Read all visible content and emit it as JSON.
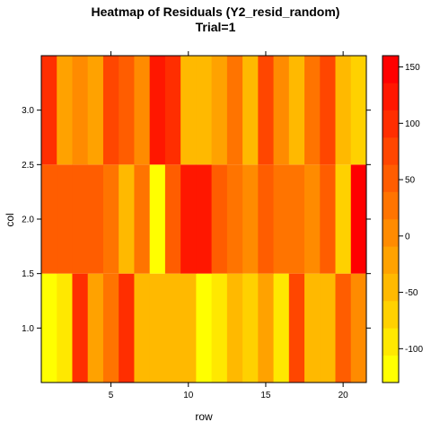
{
  "chart_data": {
    "type": "heatmap",
    "title": "Heatmap of Residuals (Y2_resid_random)",
    "subtitle": "Trial=1",
    "xlabel": "row",
    "ylabel": "col",
    "x": [
      1,
      2,
      3,
      4,
      5,
      6,
      7,
      8,
      9,
      10,
      11,
      12,
      13,
      14,
      15,
      16,
      17,
      18,
      19,
      20,
      21
    ],
    "y": [
      1,
      2,
      3
    ],
    "xlim": [
      0.5,
      21.5
    ],
    "ylim": [
      0.5,
      3.5
    ],
    "x_ticks": [
      5,
      10,
      15,
      20
    ],
    "x_tick_labels": [
      "5",
      "10",
      "15",
      "20"
    ],
    "y_ticks": [
      1.0,
      1.5,
      2.0,
      2.5,
      3.0
    ],
    "y_tick_labels": [
      "1.0",
      "1.5",
      "2.0",
      "2.5",
      "3.0"
    ],
    "values": [
      [
        -125,
        -90,
        95,
        -20,
        25,
        95,
        -55,
        -55,
        -55,
        -50,
        -125,
        -100,
        -40,
        -70,
        -15,
        -100,
        70,
        -40,
        -40,
        40,
        -5
      ],
      [
        60,
        40,
        40,
        40,
        25,
        -40,
        15,
        -115,
        50,
        130,
        130,
        40,
        25,
        -5,
        45,
        25,
        25,
        0,
        40,
        -70,
        145
      ],
      [
        110,
        -25,
        -5,
        -30,
        75,
        55,
        -5,
        130,
        90,
        -40,
        -50,
        -20,
        35,
        -50,
        75,
        -5,
        -40,
        25,
        65,
        -40,
        -60
      ]
    ],
    "colorbar": {
      "range": [
        -130,
        160
      ],
      "ticks": [
        -100,
        -50,
        0,
        50,
        100,
        150
      ],
      "tick_labels": [
        "-100",
        "-50",
        "0",
        "50",
        "100",
        "150"
      ],
      "low_color": "#FFFF00",
      "high_color": "#FF0000"
    },
    "grid": false,
    "legend": "right colorbar"
  }
}
